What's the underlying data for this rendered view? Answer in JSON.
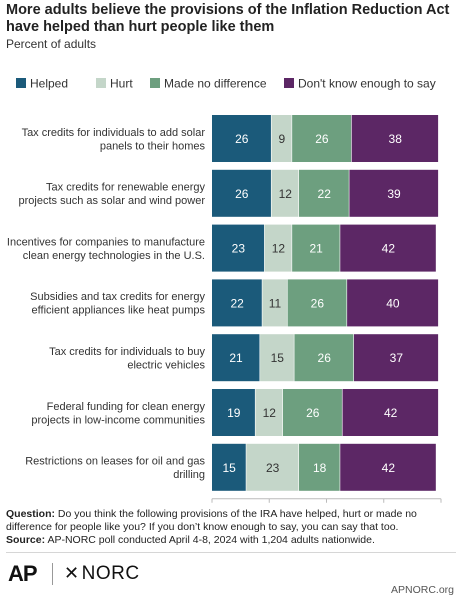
{
  "title": "More adults believe the provisions of the Inflation Reduction Act have helped than hurt people like them",
  "subtitle": "Percent of adults",
  "footnote": {
    "question_label": "Question:",
    "question_text": "Do you think the following provisions of the IRA have helped, hurt or made no difference for people like you? If you don’t know enough to say, you can say that too.",
    "source_label": "Source:",
    "source_text": "AP-NORC poll conducted April 4-8, 2024 with 1,204 adults nationwide."
  },
  "logos": {
    "ap": "AP",
    "norc": "NORC",
    "site": "APNORC.org"
  },
  "colors": {
    "helped": "#1b5a7a",
    "hurt": "#c4d6c9",
    "no_difference": "#6d9f7f",
    "dont_know": "#5c2765"
  },
  "chart_data": {
    "type": "bar",
    "orientation": "horizontal",
    "stacked": true,
    "categories": [
      "Tax credits for individuals to add solar panels to their homes",
      "Tax credits for renewable energy projects such as solar and wind power",
      "Incentives for companies to manufacture clean energy technologies in the U.S.",
      "Subsidies and tax credits for energy efficient appliances like heat pumps",
      "Tax credits for individuals to buy electric vehicles",
      "Federal funding for clean energy projects in low-income communities",
      "Restrictions on leases for oil and gas drilling"
    ],
    "series": [
      {
        "name": "Helped",
        "color": "#1b5a7a",
        "label_color": "#ffffff",
        "values": [
          26,
          26,
          23,
          22,
          21,
          19,
          15
        ]
      },
      {
        "name": "Hurt",
        "color": "#c4d6c9",
        "label_color": "#333333",
        "values": [
          9,
          12,
          12,
          11,
          15,
          12,
          23
        ]
      },
      {
        "name": "Made no difference",
        "color": "#6d9f7f",
        "label_color": "#ffffff",
        "values": [
          26,
          22,
          21,
          26,
          26,
          26,
          18
        ]
      },
      {
        "name": "Don't know enough to say",
        "color": "#5c2765",
        "label_color": "#ffffff",
        "values": [
          38,
          39,
          42,
          40,
          37,
          42,
          42
        ]
      }
    ],
    "xlim": [
      0,
      100
    ],
    "xticks": [
      "0",
      "25",
      "50",
      "75",
      "100%"
    ],
    "xtick_values": [
      0,
      25,
      50,
      75,
      100
    ],
    "legend_position": "top",
    "grid": false
  }
}
